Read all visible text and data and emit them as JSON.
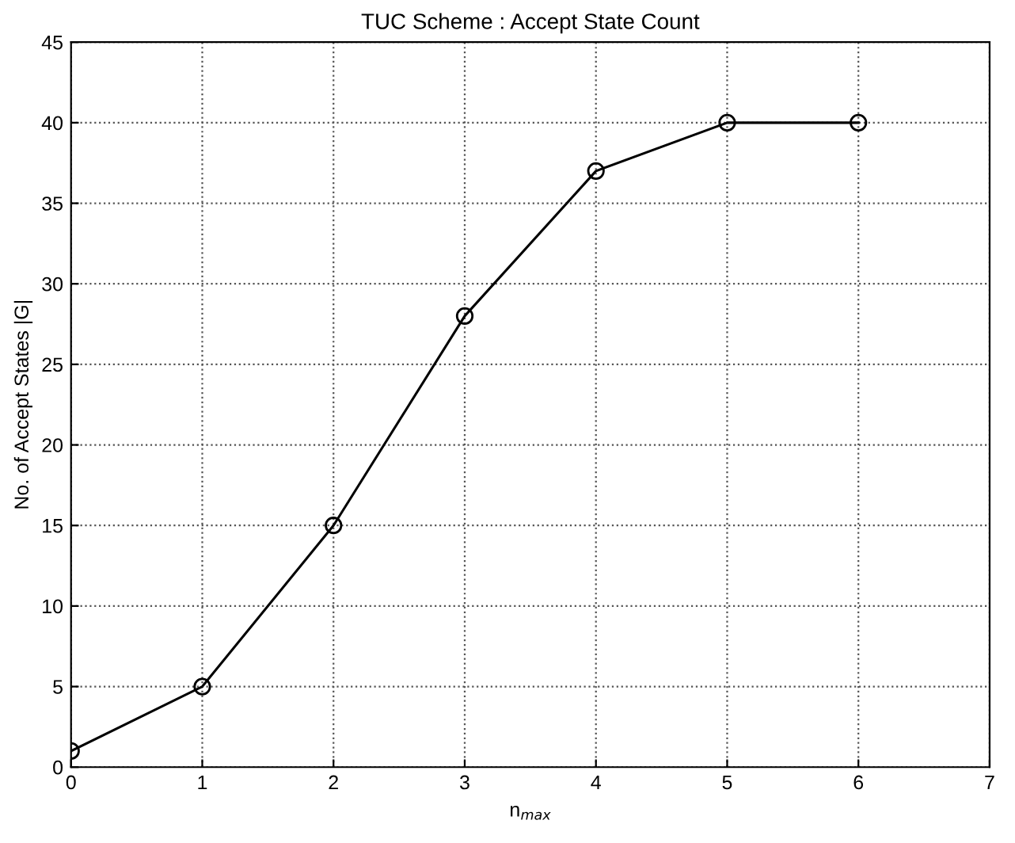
{
  "chart_data": {
    "type": "line",
    "title": "TUC Scheme : Accept State Count",
    "xlabel": "n$_{max}$",
    "ylabel": "No. of Accept States |G|",
    "x": [
      0,
      1,
      2,
      3,
      4,
      5,
      6
    ],
    "series": [
      {
        "color": "#000000",
        "values": [
          1,
          5,
          15,
          28,
          37,
          40,
          40
        ]
      }
    ],
    "xlim": [
      0,
      7
    ],
    "xticks": [
      0,
      1,
      2,
      3,
      4,
      5,
      6,
      7
    ],
    "ylim": [
      0,
      45
    ],
    "yticks": [
      0,
      5,
      10,
      15,
      20,
      25,
      30,
      35,
      40,
      45
    ],
    "grid": true,
    "marker": "circle",
    "line_style": "solid"
  }
}
